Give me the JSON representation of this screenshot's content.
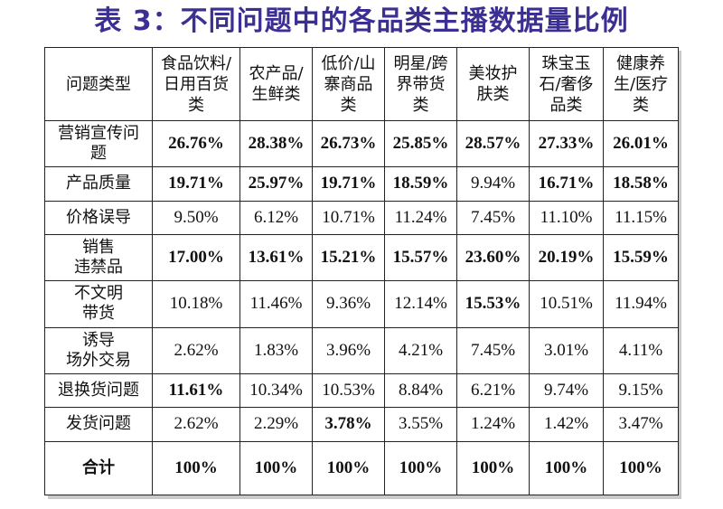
{
  "title": "表 3：不同问题中的各品类主播数据量比例",
  "table": {
    "corner": [
      "问题类型"
    ],
    "columns": [
      [
        "食品饮料/",
        "日用百货",
        "类"
      ],
      [
        "农产品/",
        "生鲜类"
      ],
      [
        "低价/山",
        "寨商品",
        "类"
      ],
      [
        "明星/跨",
        "界带货",
        "类"
      ],
      [
        "美妆护",
        "肤类"
      ],
      [
        "珠宝玉",
        "石/奢侈",
        "品类"
      ],
      [
        "健康养",
        "生/医疗",
        "类"
      ]
    ],
    "rows": [
      {
        "label": [
          "营销宣传问",
          "题"
        ],
        "values": [
          "26.76%",
          "28.38%",
          "26.73%",
          "25.85%",
          "28.57%",
          "27.33%",
          "26.01%"
        ],
        "bold": [
          true,
          true,
          true,
          true,
          true,
          true,
          true
        ]
      },
      {
        "label": [
          "产品质量"
        ],
        "values": [
          "19.71%",
          "25.97%",
          "19.71%",
          "18.59%",
          "9.94%",
          "16.71%",
          "18.58%"
        ],
        "bold": [
          true,
          true,
          true,
          true,
          false,
          true,
          true
        ]
      },
      {
        "label": [
          "价格误导"
        ],
        "values": [
          "9.50%",
          "6.12%",
          "10.71%",
          "11.24%",
          "7.45%",
          "11.10%",
          "11.15%"
        ],
        "bold": [
          false,
          false,
          false,
          false,
          false,
          false,
          false
        ]
      },
      {
        "label": [
          "销售",
          "违禁品"
        ],
        "values": [
          "17.00%",
          "13.61%",
          "15.21%",
          "15.57%",
          "23.60%",
          "20.19%",
          "15.59%"
        ],
        "bold": [
          true,
          true,
          true,
          true,
          true,
          true,
          true
        ]
      },
      {
        "label": [
          "不文明",
          "带货"
        ],
        "values": [
          "10.18%",
          "11.46%",
          "9.36%",
          "12.14%",
          "15.53%",
          "10.51%",
          "11.94%"
        ],
        "bold": [
          false,
          false,
          false,
          false,
          true,
          false,
          false
        ]
      },
      {
        "label": [
          "诱导",
          "场外交易"
        ],
        "values": [
          "2.62%",
          "1.83%",
          "3.96%",
          "4.21%",
          "7.45%",
          "3.01%",
          "4.11%"
        ],
        "bold": [
          false,
          false,
          false,
          false,
          false,
          false,
          false
        ]
      },
      {
        "label": [
          "退换货问题"
        ],
        "values": [
          "11.61%",
          "10.34%",
          "10.53%",
          "8.84%",
          "6.21%",
          "9.74%",
          "9.15%"
        ],
        "bold": [
          true,
          false,
          false,
          false,
          false,
          false,
          false
        ]
      },
      {
        "label": [
          "发货问题"
        ],
        "values": [
          "2.62%",
          "2.29%",
          "3.78%",
          "3.55%",
          "1.24%",
          "1.42%",
          "3.47%"
        ],
        "bold": [
          false,
          false,
          true,
          false,
          false,
          false,
          false
        ]
      },
      {
        "label": [
          "合计"
        ],
        "values": [
          "100%",
          "100%",
          "100%",
          "100%",
          "100%",
          "100%",
          "100%"
        ],
        "bold": [
          true,
          true,
          true,
          true,
          true,
          true,
          true
        ],
        "total": true
      }
    ]
  }
}
